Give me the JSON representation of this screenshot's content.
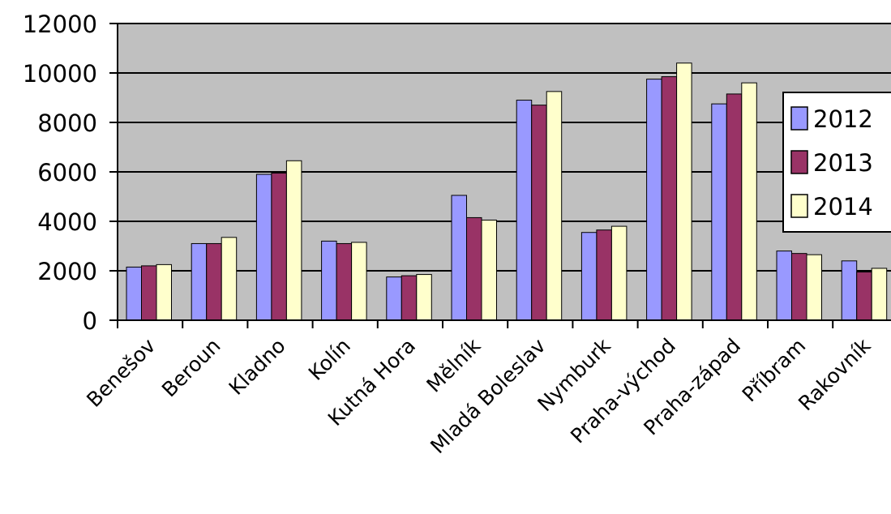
{
  "chart_data": {
    "type": "bar",
    "title": "",
    "xlabel": "",
    "ylabel": "",
    "ylim": [
      0,
      12000
    ],
    "yticks": [
      0,
      2000,
      4000,
      6000,
      8000,
      10000,
      12000
    ],
    "ytick_labels": [
      "0",
      "2000",
      "4000",
      "6000",
      "8000",
      "10000",
      "12000"
    ],
    "grid": true,
    "legend_position": "right",
    "categories": [
      "Benešov",
      "Beroun",
      "Kladno",
      "Kolín",
      "Kutná Hora",
      "Mělník",
      "Mladá Boleslav",
      "Nymburk",
      "Praha-východ",
      "Praha-západ",
      "Příbram",
      "Rakovník"
    ],
    "series": [
      {
        "name": "2012",
        "color": "#9999ff",
        "values": [
          2150,
          3100,
          5900,
          3200,
          1750,
          5050,
          8900,
          3550,
          9750,
          8750,
          2800,
          2400
        ]
      },
      {
        "name": "2013",
        "color": "#993366",
        "values": [
          2200,
          3100,
          5950,
          3100,
          1800,
          4150,
          8700,
          3650,
          9850,
          9150,
          2700,
          1950
        ]
      },
      {
        "name": "2014",
        "color": "#ffffcc",
        "values": [
          2250,
          3350,
          6450,
          3150,
          1850,
          4050,
          9250,
          3800,
          10400,
          9600,
          2650,
          2100
        ]
      }
    ],
    "colors": {
      "plot_background": "#c0c0c0",
      "gridline": "#000000",
      "bar_outline": "#000000"
    }
  }
}
